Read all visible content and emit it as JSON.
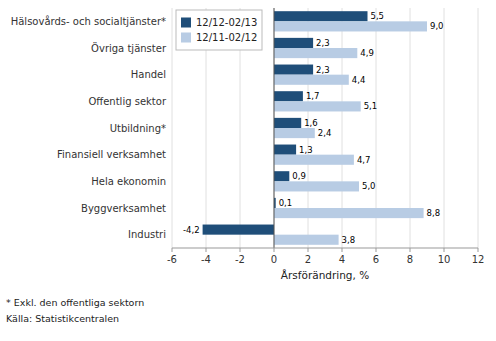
{
  "chart_data": {
    "type": "bar",
    "orientation": "horizontal",
    "categories": [
      "Industri",
      "Byggverksamhet",
      "Hela ekonomin",
      "Finansiell verksamhet",
      "Utbildning*",
      "Offentlig sektor",
      "Handel",
      "Övriga tjänster",
      "Hälsovårds- och socialtjänster*"
    ],
    "series": [
      {
        "name": "12/12-02/13",
        "color": "#1F4E79",
        "values": [
          -4.2,
          0.1,
          0.9,
          1.3,
          1.6,
          1.7,
          2.3,
          2.3,
          5.5
        ],
        "value_labels": [
          "-4,2",
          "0,1",
          "0,9",
          "1,3",
          "1,6",
          "1,7",
          "2,3",
          "2,3",
          "5,5"
        ]
      },
      {
        "name": "12/11-02/12",
        "color": "#B8CCE4",
        "values": [
          3.8,
          8.8,
          5.0,
          4.7,
          2.4,
          5.1,
          4.4,
          4.9,
          9.0
        ],
        "value_labels": [
          "3,8",
          "8,8",
          "5,0",
          "4,7",
          "2,4",
          "5,1",
          "4,4",
          "4,9",
          "9,0"
        ]
      }
    ],
    "xlabel": "Årsförändring, %",
    "xlim": [
      -6,
      12
    ],
    "xticks": [
      -6,
      -4,
      -2,
      0,
      2,
      4,
      6,
      8,
      10,
      12
    ],
    "grid": true,
    "legend": "upper left",
    "data_labels": true,
    "annotations": [
      "* Exkl. den offentliga sektorn",
      "Källa: Statistikcentralen"
    ]
  }
}
